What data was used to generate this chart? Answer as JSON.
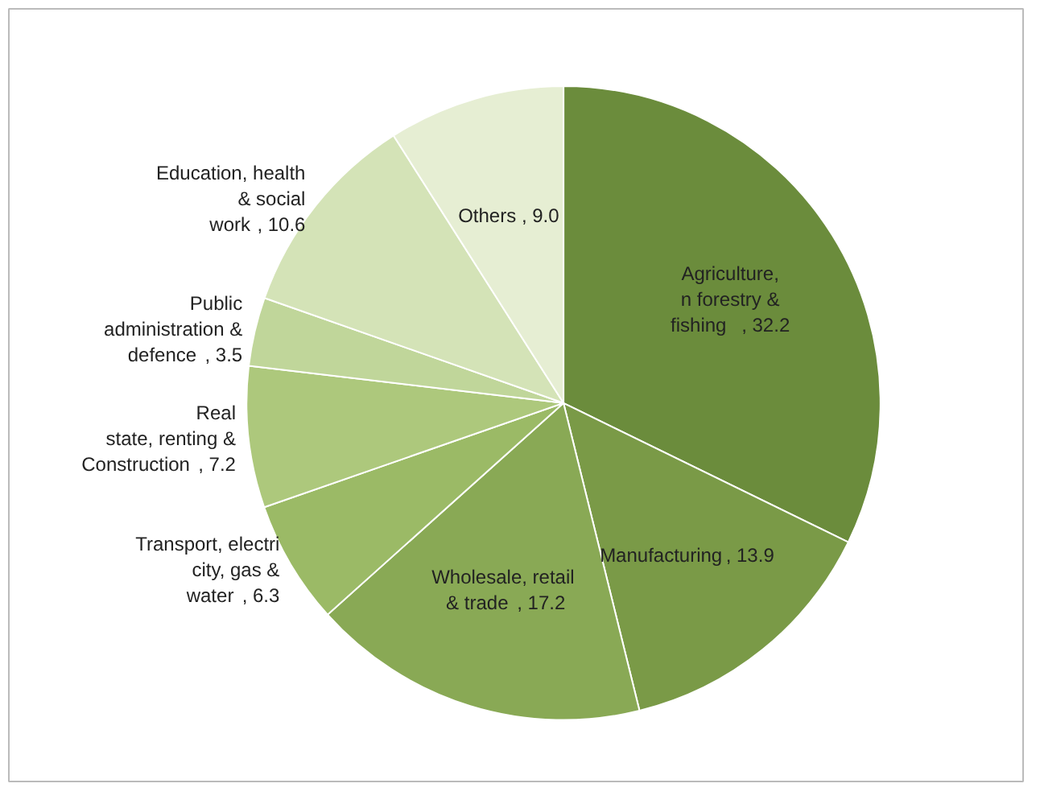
{
  "chart_data": {
    "type": "pie",
    "categories": [
      "Agriculture,\nn forestry &\nfishing",
      "Manufacturing",
      "Wholesale,  retail\n& trade",
      "Transport, electri\ncity, gas &\nwater",
      "Real\nstate, renting &\nConstruction",
      "Public\nadministration &\ndefence",
      "Education, health\n& social\nwork",
      "Others"
    ],
    "values": [
      32.2,
      13.9,
      17.2,
      6.3,
      7.2,
      3.5,
      10.6,
      9.0
    ],
    "colors": [
      "#6b8c3c",
      "#7a9a47",
      "#89a955",
      "#9bba66",
      "#adc87c",
      "#c0d69a",
      "#d4e3b7",
      "#e6eed3"
    ],
    "value_labels": [
      ", 32.2",
      ", 13.9",
      ", 17.2",
      ", 6.3",
      ", 7.2",
      ", 3.5",
      ", 10.6",
      ", 9.0"
    ]
  }
}
